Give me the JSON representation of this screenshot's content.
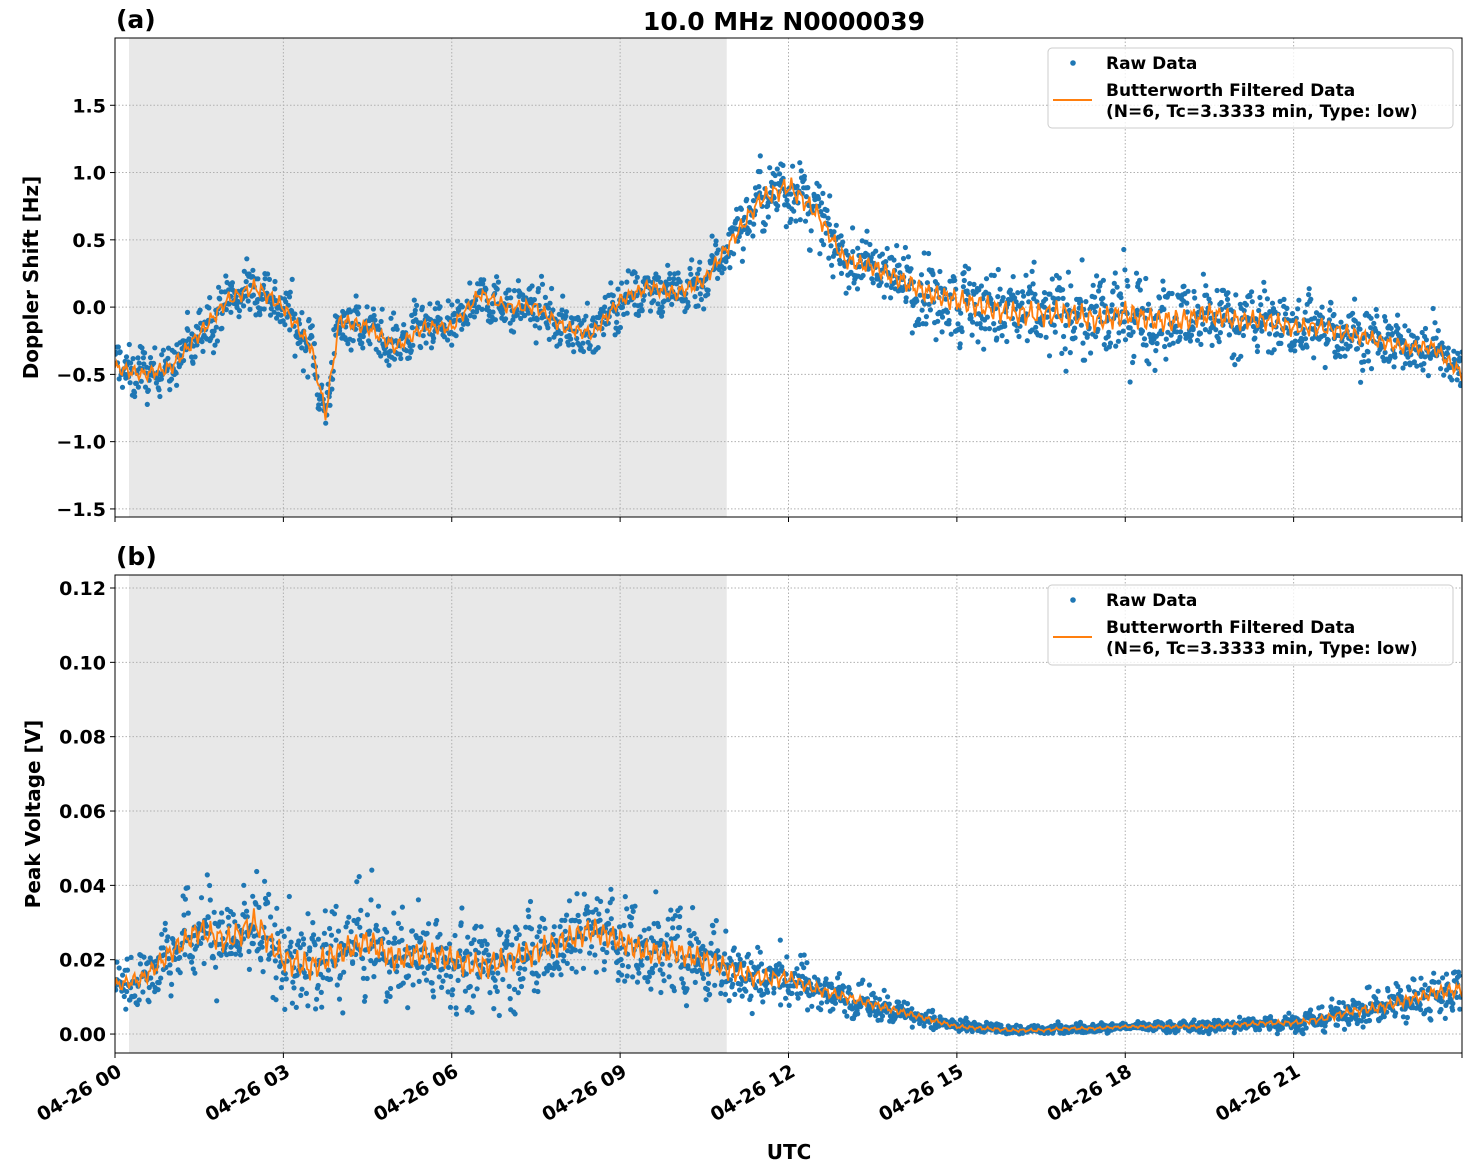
{
  "title": "10.0 MHz N0000039",
  "xlabel": "UTC",
  "legend": {
    "raw_label": "Raw Data",
    "filtered_label_line1": "Butterworth Filtered Data",
    "filtered_label_line2": "(N=6, Tc=3.3333 min, Type: low)"
  },
  "colors": {
    "raw": "#1f77b4",
    "filtered": "#ff7f0e",
    "shade": "#e8e8e8",
    "grid": "#b0b0b0"
  },
  "chart_data": [
    {
      "type": "scatter+line",
      "panel_label": "(a)",
      "ylabel": "Doppler Shift [Hz]",
      "xlim_hours": [
        0,
        24
      ],
      "ylim": [
        -1.56,
        2.0
      ],
      "yticks": [
        -1.5,
        -1.0,
        -0.5,
        0.0,
        0.5,
        1.0,
        1.5
      ],
      "ytick_labels": [
        "−1.5",
        "−1.0",
        "−0.5",
        "0.0",
        "0.5",
        "1.0",
        "1.5"
      ],
      "xticks_hours": [
        0,
        3,
        6,
        9,
        12,
        15,
        18,
        21
      ],
      "xtick_labels": [
        "04-26 00",
        "04-26 03",
        "04-26 06",
        "04-26 09",
        "04-26 12",
        "04-26 15",
        "04-26 18",
        "04-26 21"
      ],
      "grid": true,
      "legend_position": "upper-right",
      "shaded_span_hours": [
        0.25,
        10.9
      ],
      "filtered": {
        "x_hours": [
          0,
          0.5,
          1,
          1.5,
          2,
          2.5,
          3,
          3.5,
          3.75,
          4,
          4.5,
          5,
          5.5,
          6,
          6.5,
          7,
          7.5,
          8,
          8.5,
          9,
          9.5,
          10,
          10.5,
          11,
          11.5,
          12,
          12.5,
          13,
          13.5,
          14,
          14.5,
          15,
          15.5,
          16,
          16.5,
          17,
          17.5,
          18,
          18.5,
          19,
          19.5,
          20,
          20.5,
          21,
          21.5,
          22,
          22.5,
          23,
          23.5,
          24
        ],
        "y": [
          -0.45,
          -0.5,
          -0.45,
          -0.2,
          0.05,
          0.15,
          0.0,
          -0.3,
          -0.8,
          -0.1,
          -0.15,
          -0.3,
          -0.15,
          -0.15,
          0.1,
          0.0,
          0.0,
          -0.15,
          -0.2,
          0.05,
          0.15,
          0.1,
          0.2,
          0.5,
          0.8,
          0.9,
          0.7,
          0.35,
          0.3,
          0.2,
          0.1,
          0.05,
          0.0,
          -0.05,
          -0.05,
          -0.05,
          -0.1,
          -0.05,
          -0.1,
          -0.1,
          -0.05,
          -0.1,
          -0.1,
          -0.15,
          -0.15,
          -0.2,
          -0.25,
          -0.3,
          -0.3,
          -0.5
        ]
      },
      "raw_spread": {
        "x_hours": [
          0,
          3,
          6,
          9,
          11,
          12,
          13,
          15,
          18,
          21,
          24
        ],
        "half_width": [
          0.3,
          0.35,
          0.3,
          0.3,
          0.35,
          0.45,
          0.35,
          0.5,
          0.55,
          0.4,
          0.3
        ]
      }
    },
    {
      "type": "scatter+line",
      "panel_label": "(b)",
      "ylabel": "Peak Voltage [V]",
      "xlim_hours": [
        0,
        24
      ],
      "ylim": [
        -0.0051,
        0.1235
      ],
      "yticks": [
        0.0,
        0.02,
        0.04,
        0.06,
        0.08,
        0.1,
        0.12
      ],
      "ytick_labels": [
        "0.00",
        "0.02",
        "0.04",
        "0.06",
        "0.08",
        "0.10",
        "0.12"
      ],
      "xticks_hours": [
        0,
        3,
        6,
        9,
        12,
        15,
        18,
        21
      ],
      "xtick_labels": [
        "04-26 00",
        "04-26 03",
        "04-26 06",
        "04-26 09",
        "04-26 12",
        "04-26 15",
        "04-26 18",
        "04-26 21"
      ],
      "grid": true,
      "legend_position": "upper-right",
      "shaded_span_hours": [
        0.25,
        10.9
      ],
      "filtered": {
        "x_hours": [
          0,
          0.5,
          1,
          1.5,
          2,
          2.5,
          3,
          3.5,
          4,
          4.5,
          5,
          5.5,
          6,
          6.5,
          7,
          7.5,
          8,
          8.5,
          9,
          9.5,
          10,
          10.5,
          11,
          11.5,
          12,
          12.5,
          13,
          13.5,
          14,
          14.5,
          15,
          15.5,
          16,
          16.5,
          17,
          17.5,
          18,
          18.5,
          19,
          19.5,
          20,
          20.5,
          21,
          21.5,
          22,
          22.5,
          23,
          23.5,
          24
        ],
        "y": [
          0.013,
          0.015,
          0.022,
          0.028,
          0.025,
          0.03,
          0.02,
          0.018,
          0.022,
          0.025,
          0.02,
          0.022,
          0.02,
          0.018,
          0.02,
          0.022,
          0.025,
          0.028,
          0.025,
          0.022,
          0.022,
          0.02,
          0.017,
          0.015,
          0.015,
          0.012,
          0.01,
          0.008,
          0.006,
          0.004,
          0.002,
          0.0015,
          0.001,
          0.001,
          0.0015,
          0.0015,
          0.002,
          0.002,
          0.002,
          0.002,
          0.0025,
          0.003,
          0.003,
          0.004,
          0.006,
          0.007,
          0.009,
          0.011,
          0.012
        ]
      },
      "raw_spread": {
        "x_hours": [
          0,
          1.5,
          3,
          6,
          9,
          10.9,
          12,
          13,
          15,
          18,
          21,
          24
        ],
        "half_width": [
          0.01,
          0.02,
          0.022,
          0.02,
          0.02,
          0.018,
          0.012,
          0.008,
          0.003,
          0.002,
          0.004,
          0.012
        ]
      }
    }
  ]
}
